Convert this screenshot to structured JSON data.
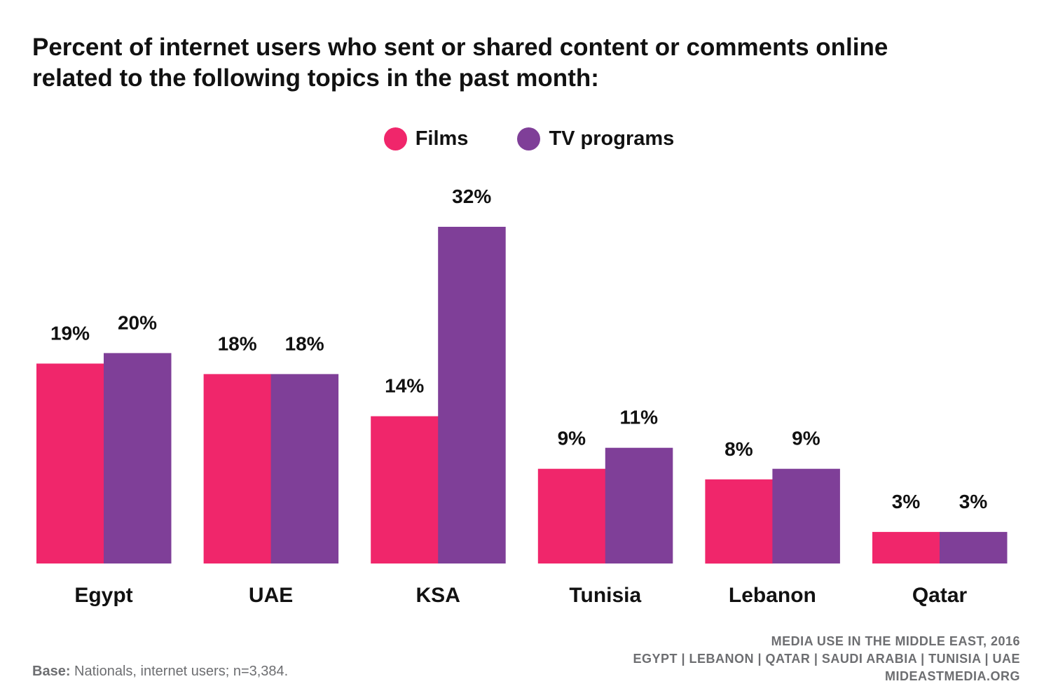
{
  "header": {
    "title_line1": "Percent of internet users who sent or shared content or comments online",
    "title_line2": "related to the following topics in the past month:"
  },
  "legend": {
    "films_label": "Films",
    "tv_label": "TV programs"
  },
  "colors": {
    "films": "#f0266b",
    "tv": "#7f3f98",
    "footer_text": "#6d6e71"
  },
  "chart_data": {
    "type": "bar",
    "categories": [
      "Egypt",
      "UAE",
      "KSA",
      "Tunisia",
      "Lebanon",
      "Qatar"
    ],
    "series": [
      {
        "name": "Films",
        "values": [
          19,
          18,
          14,
          9,
          8,
          3
        ]
      },
      {
        "name": "TV programs",
        "values": [
          20,
          18,
          32,
          11,
          9,
          3
        ]
      }
    ],
    "value_suffix": "%",
    "title": "Percent of internet users who sent or shared content or comments online related to the following topics in the past month:",
    "xlabel": "",
    "ylabel": "",
    "ylim": [
      0,
      32
    ],
    "grid": false,
    "legend_position": "top-center"
  },
  "footer": {
    "source_line1": "MEDIA USE IN THE MIDDLE EAST, 2016",
    "source_line2": "EGYPT | LEBANON | QATAR | SAUDI ARABIA | TUNISIA | UAE",
    "source_line3": "MIDEASTMEDIA.ORG",
    "base_prefix": "Base:",
    "base_text": " Nationals, internet users; n=3,384."
  }
}
